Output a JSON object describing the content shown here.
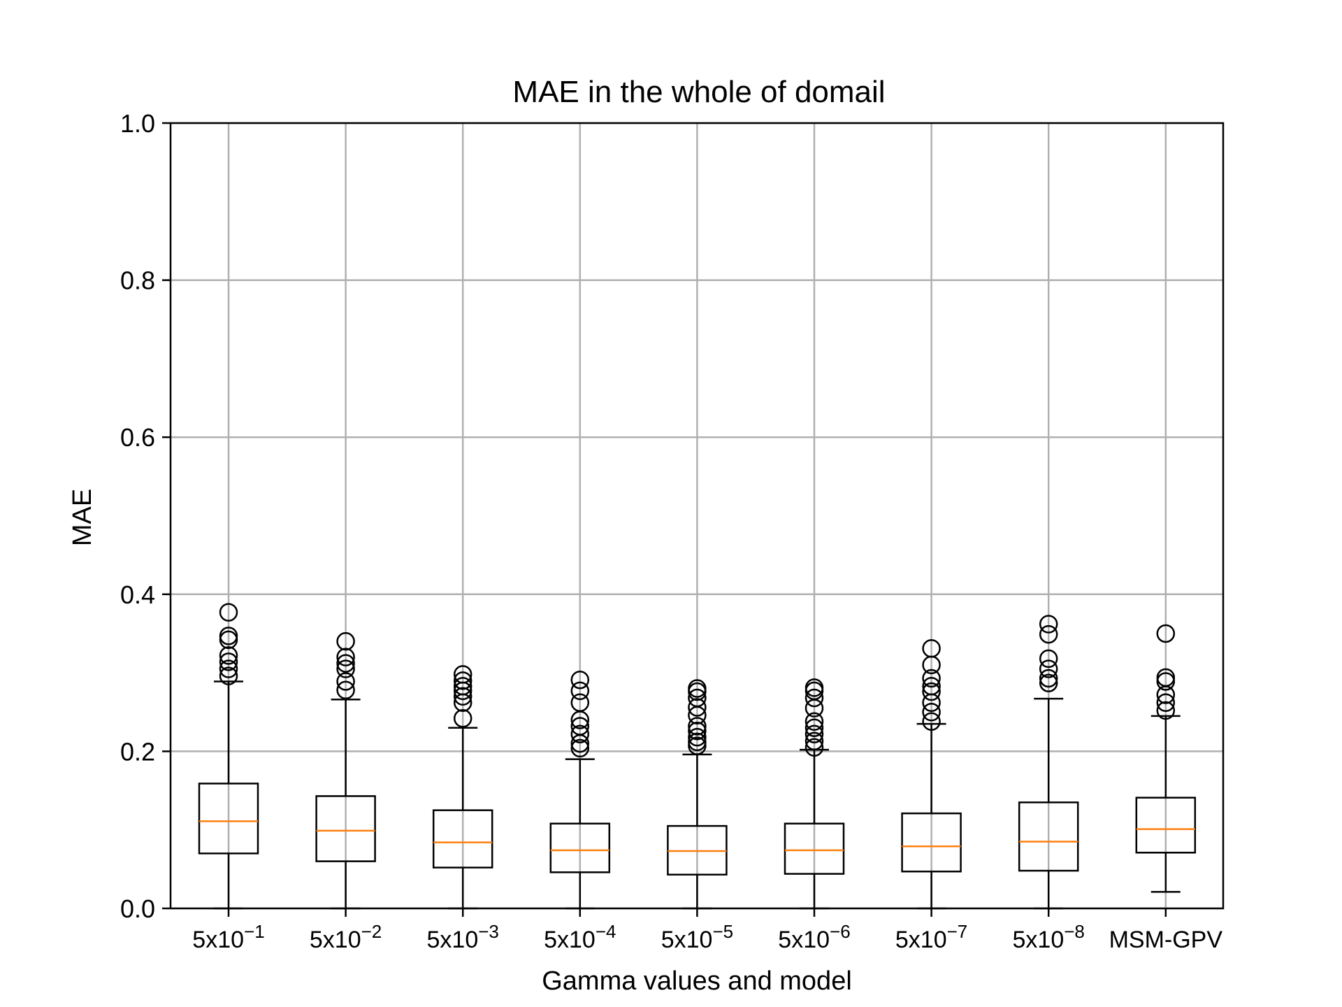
{
  "chart_data": {
    "type": "box",
    "title": "MAE in the whole of domail",
    "xlabel": "Gamma values and model",
    "ylabel": "MAE",
    "ylim": [
      0.0,
      1.0
    ],
    "yticks": [
      "0.0",
      "0.2",
      "0.4",
      "0.6",
      "0.8",
      "1.0"
    ],
    "grid": true,
    "colors": {
      "box": "#000000",
      "median": "#ff7f0e",
      "grid": "#b0b0b0"
    },
    "categories": [
      {
        "base": "5x10",
        "exp": "−1"
      },
      {
        "base": "5x10",
        "exp": "−2"
      },
      {
        "base": "5x10",
        "exp": "−3"
      },
      {
        "base": "5x10",
        "exp": "−4"
      },
      {
        "base": "5x10",
        "exp": "−5"
      },
      {
        "base": "5x10",
        "exp": "−6"
      },
      {
        "base": "5x10",
        "exp": "−7"
      },
      {
        "base": "5x10",
        "exp": "−8"
      },
      {
        "base": "MSM-GPV",
        "exp": ""
      }
    ],
    "boxes": [
      {
        "whislo": 0.0,
        "q1": 0.07,
        "med": 0.111,
        "q3": 0.159,
        "whishi": 0.289,
        "fliers": [
          0.296,
          0.305,
          0.314,
          0.322,
          0.342,
          0.347,
          0.377
        ]
      },
      {
        "whislo": 0.0,
        "q1": 0.06,
        "med": 0.099,
        "q3": 0.143,
        "whishi": 0.266,
        "fliers": [
          0.278,
          0.289,
          0.305,
          0.312,
          0.32,
          0.34
        ]
      },
      {
        "whislo": 0.0,
        "q1": 0.052,
        "med": 0.084,
        "q3": 0.125,
        "whishi": 0.23,
        "fliers": [
          0.242,
          0.262,
          0.27,
          0.277,
          0.283,
          0.29,
          0.298
        ]
      },
      {
        "whislo": 0.0,
        "q1": 0.046,
        "med": 0.074,
        "q3": 0.108,
        "whishi": 0.19,
        "fliers": [
          0.204,
          0.21,
          0.222,
          0.232,
          0.24,
          0.262,
          0.277,
          0.291
        ]
      },
      {
        "whislo": 0.0,
        "q1": 0.043,
        "med": 0.073,
        "q3": 0.105,
        "whishi": 0.196,
        "fliers": [
          0.207,
          0.212,
          0.218,
          0.226,
          0.232,
          0.246,
          0.256,
          0.268,
          0.276,
          0.28
        ]
      },
      {
        "whislo": 0.0,
        "q1": 0.044,
        "med": 0.074,
        "q3": 0.108,
        "whishi": 0.202,
        "fliers": [
          0.205,
          0.213,
          0.222,
          0.23,
          0.238,
          0.255,
          0.268,
          0.277,
          0.281
        ]
      },
      {
        "whislo": 0.0,
        "q1": 0.047,
        "med": 0.079,
        "q3": 0.121,
        "whishi": 0.235,
        "fliers": [
          0.238,
          0.25,
          0.262,
          0.276,
          0.283,
          0.293,
          0.31,
          0.331
        ]
      },
      {
        "whislo": 0.0,
        "q1": 0.048,
        "med": 0.085,
        "q3": 0.135,
        "whishi": 0.267,
        "fliers": [
          0.287,
          0.293,
          0.305,
          0.318,
          0.349,
          0.362
        ]
      },
      {
        "whislo": 0.021,
        "q1": 0.071,
        "med": 0.101,
        "q3": 0.141,
        "whishi": 0.245,
        "fliers": [
          0.252,
          0.262,
          0.272,
          0.289,
          0.294,
          0.35
        ]
      }
    ]
  }
}
